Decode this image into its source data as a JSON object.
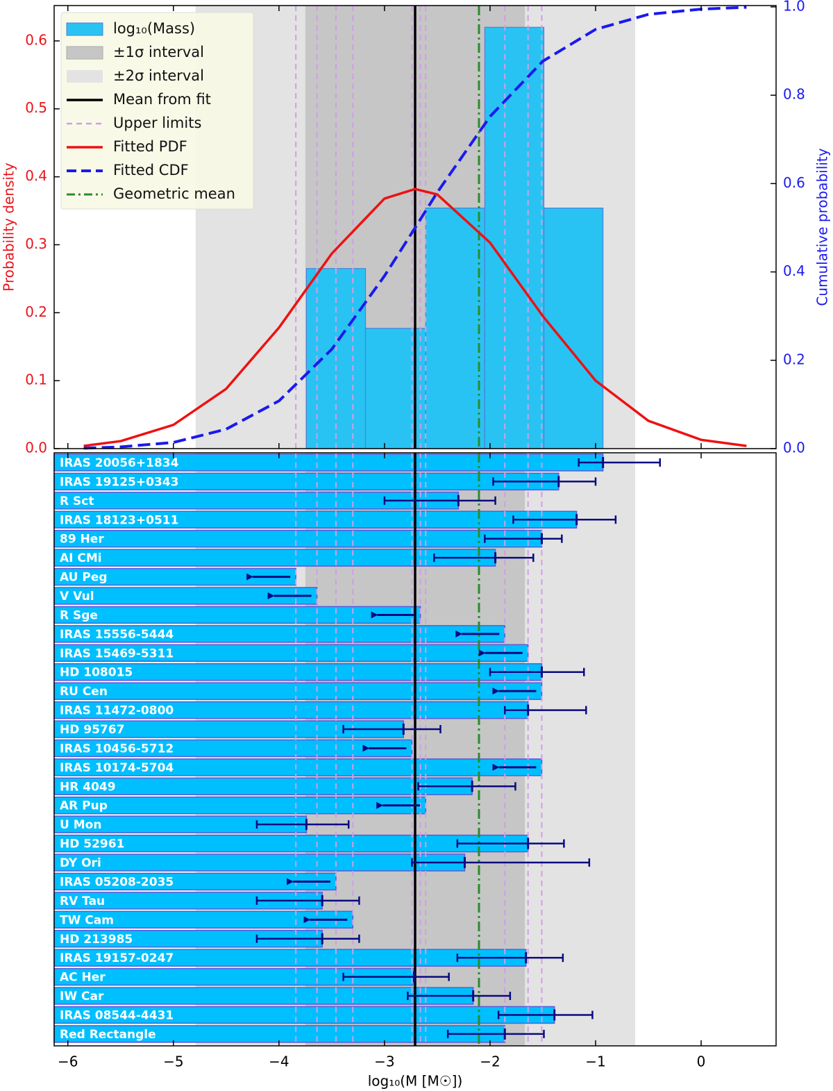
{
  "chart_data": [
    {
      "type": "histogram",
      "name": "log₁₀(Mass)",
      "bins": [
        -3.74,
        -3.18,
        -2.61,
        -2.05,
        -1.49,
        -0.93
      ],
      "values": [
        0.265,
        0.177,
        0.354,
        0.62,
        0.354
      ],
      "color": "#29c3f3",
      "edgecolor": "#4f7fd6",
      "ylabel": "Probability density",
      "ylabel_color": "#e8141b",
      "y2label": "Cumulative probability",
      "y2label_color": "#1a1aee",
      "xlim": [
        -6.13,
        0.71
      ],
      "ylim": [
        0,
        0.652
      ],
      "yticks": [
        {
          "value": 0,
          "label": "0.0"
        },
        0.1,
        0.2,
        0.3,
        0.4,
        0.5,
        0.6
      ],
      "y2lim": [
        0,
        1.003
      ],
      "y2ticks": [
        {
          "value": 0,
          "label": "0.0"
        },
        0.2,
        0.4,
        0.6,
        0.8,
        {
          "value": 1,
          "label": "1.0"
        }
      ],
      "series": [
        {
          "name": "Fitted PDF",
          "color": "#ee1111",
          "x": [
            -5.85,
            -5.5,
            -5,
            -4.5,
            -4,
            -3.5,
            -3,
            -2.71,
            -2.5,
            -2,
            -1.5,
            -1,
            -0.5,
            0,
            0.43
          ],
          "values": [
            0.004,
            0.011,
            0.035,
            0.088,
            0.178,
            0.287,
            0.368,
            0.382,
            0.374,
            0.303,
            0.195,
            0.1,
            0.041,
            0.013,
            0.004
          ]
        },
        {
          "name": "Fitted CDF",
          "color": "#1a1aee",
          "axis": "y2",
          "x": [
            -5.85,
            -5.5,
            -5,
            -4.5,
            -4,
            -3.5,
            -3,
            -2.71,
            -2.5,
            -2,
            -1.5,
            -1,
            -0.5,
            0,
            0.43
          ],
          "values": [
            0.001,
            0.004,
            0.014,
            0.044,
            0.108,
            0.225,
            0.391,
            0.5,
            0.58,
            0.752,
            0.877,
            0.949,
            0.983,
            0.995,
            0.999
          ]
        }
      ],
      "mean": {
        "name": "Mean from fit",
        "value": -2.71,
        "color": "#000000"
      },
      "geometric_mean": {
        "name": "Geometric mean",
        "value": -2.105,
        "color": "#2a8c2a"
      },
      "sigma1": {
        "name": "±1σ interval",
        "range": [
          -3.75,
          -1.67
        ],
        "color": "#c6c6c6"
      },
      "sigma2": {
        "name": "±2σ interval",
        "range": [
          -4.79,
          -0.625
        ],
        "color": "#e3e3e3"
      },
      "upper_limits": {
        "name": "Upper limits",
        "values": [
          -3.84,
          -3.64,
          -3.46,
          -3.3,
          -2.74,
          -2.66,
          -2.61,
          -1.86,
          -1.64,
          -1.51
        ],
        "color": "#cf9fe4"
      },
      "legend": "upper left"
    },
    {
      "type": "barh",
      "categories": [
        "IRAS 20056+1834",
        "IRAS 19125+0343",
        "R Sct",
        "IRAS 18123+0511",
        "89 Her",
        "AI CMi",
        "AU Peg",
        "V Vul",
        "R Sge",
        "IRAS 15556-5444",
        "IRAS 15469-5311",
        "HD 108015",
        "RU Cen",
        "IRAS 11472-0800",
        "HD 95767",
        "IRAS 10456-5712",
        "IRAS 10174-5704",
        "HR 4049",
        "AR Pup",
        "U Mon",
        "HD 52961",
        "DY Ori",
        "IRAS 05208-2035",
        "RV Tau",
        "TW Cam",
        "HD 213985",
        "IRAS 19157-0247",
        "AC Her",
        "IW Car",
        "IRAS 08544-4431",
        "Red Rectangle"
      ],
      "values": [
        -0.93,
        -1.35,
        -2.3,
        -1.18,
        -1.51,
        -1.95,
        -3.84,
        -3.64,
        -2.66,
        -1.86,
        -1.64,
        -1.51,
        -1.51,
        -1.64,
        -2.82,
        -2.74,
        -1.51,
        -2.17,
        -2.61,
        -3.74,
        -1.64,
        -2.24,
        -3.46,
        -3.59,
        -3.3,
        -3.59,
        -1.66,
        -2.72,
        -2.16,
        -1.39,
        -1.86
      ],
      "lower": [
        -1.16,
        -1.97,
        -3.0,
        -1.78,
        -2.05,
        -2.53,
        null,
        null,
        null,
        null,
        null,
        -2.0,
        null,
        -1.86,
        -3.39,
        null,
        null,
        -2.68,
        null,
        -4.21,
        -2.31,
        -2.74,
        null,
        -4.21,
        null,
        -4.21,
        -2.31,
        -3.39,
        -2.78,
        -1.92,
        -2.4
      ],
      "upper": [
        -0.39,
        -1.0,
        -1.95,
        -0.81,
        -1.32,
        -1.59,
        null,
        null,
        null,
        null,
        null,
        -1.11,
        null,
        -1.09,
        -2.47,
        null,
        null,
        -1.76,
        null,
        -3.34,
        -1.3,
        -1.06,
        null,
        -3.24,
        null,
        -3.24,
        -1.31,
        -2.39,
        -1.81,
        -1.03,
        -1.49
      ],
      "upper_limit": [
        false,
        false,
        false,
        false,
        false,
        false,
        true,
        true,
        true,
        true,
        true,
        false,
        true,
        false,
        false,
        true,
        true,
        false,
        true,
        false,
        false,
        false,
        true,
        false,
        true,
        false,
        false,
        false,
        false,
        false,
        false
      ],
      "color": "#00bfff",
      "edgecolor": "#5b5bd6",
      "errcolor": "#0a0a80",
      "xlim": [
        -6.13,
        0.71
      ],
      "xticks": [
        {
          "value": -6,
          "label": "−6"
        },
        {
          "value": -5,
          "label": "−5"
        },
        {
          "value": -4,
          "label": "−4"
        },
        {
          "value": -3,
          "label": "−3"
        },
        {
          "value": -2,
          "label": "−2"
        },
        {
          "value": -1,
          "label": "−1"
        },
        0
      ],
      "xlabel": "log₁₀(M [M☉])"
    }
  ]
}
